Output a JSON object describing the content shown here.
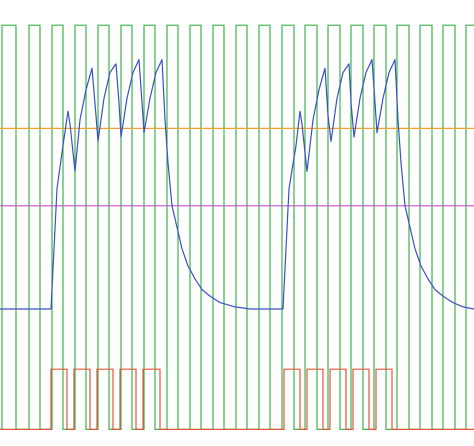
{
  "chart_data": {
    "type": "line",
    "title": "",
    "xlabel": "",
    "ylabel": "",
    "xlim": [
      0,
      474
    ],
    "ylim": [
      0,
      100
    ],
    "grid": false,
    "legend": "none",
    "clock": {
      "color": "#3cb44b",
      "high": 96,
      "low": 2,
      "rising_edges": [
        2,
        29,
        52,
        75,
        98,
        121,
        144,
        167,
        190,
        213,
        236,
        259,
        282,
        305,
        328,
        351,
        374,
        397,
        420,
        443,
        466
      ],
      "falling_edges": [
        16,
        40,
        63,
        86,
        109,
        132,
        155,
        178,
        201,
        224,
        247,
        270,
        294,
        317,
        340,
        363,
        386,
        409,
        432,
        455
      ]
    },
    "pulse_train": {
      "color": "#e6553a",
      "high": 16,
      "low": 2,
      "pulses": [
        [
          51,
          67
        ],
        [
          74,
          90
        ],
        [
          97,
          113
        ],
        [
          120,
          136
        ],
        [
          143,
          160
        ],
        [
          284,
          300
        ],
        [
          307,
          323
        ],
        [
          330,
          346
        ],
        [
          353,
          369
        ],
        [
          376,
          392
        ]
      ]
    },
    "upper_threshold": {
      "color": "#f0a030",
      "y": 72
    },
    "lower_threshold": {
      "color": "#c84fd6",
      "y": 54
    },
    "response": {
      "color": "#3a50c8",
      "points": [
        [
          0,
          30
        ],
        [
          20,
          30
        ],
        [
          51,
          30
        ],
        [
          57,
          58
        ],
        [
          63,
          68
        ],
        [
          68,
          76
        ],
        [
          70,
          73
        ],
        [
          75,
          62
        ],
        [
          80,
          74
        ],
        [
          86,
          81
        ],
        [
          92,
          86
        ],
        [
          96,
          75
        ],
        [
          98,
          69
        ],
        [
          104,
          79
        ],
        [
          110,
          85
        ],
        [
          116,
          87
        ],
        [
          119,
          78
        ],
        [
          121,
          70
        ],
        [
          127,
          79
        ],
        [
          133,
          85
        ],
        [
          139,
          88
        ],
        [
          142,
          78
        ],
        [
          144,
          71
        ],
        [
          150,
          79
        ],
        [
          156,
          85
        ],
        [
          162,
          88
        ],
        [
          165,
          74
        ],
        [
          168,
          64
        ],
        [
          172,
          54
        ],
        [
          177,
          49
        ],
        [
          182,
          44
        ],
        [
          188,
          40
        ],
        [
          195,
          37
        ],
        [
          202,
          34.5
        ],
        [
          210,
          33
        ],
        [
          220,
          31.5
        ],
        [
          235,
          30.5
        ],
        [
          250,
          30
        ],
        [
          283,
          30
        ],
        [
          289,
          58
        ],
        [
          296,
          68
        ],
        [
          300,
          76
        ],
        [
          302,
          73
        ],
        [
          307,
          62
        ],
        [
          313,
          74
        ],
        [
          319,
          81
        ],
        [
          325,
          86
        ],
        [
          328,
          75
        ],
        [
          331,
          69
        ],
        [
          337,
          79
        ],
        [
          343,
          85
        ],
        [
          349,
          87
        ],
        [
          351,
          78
        ],
        [
          354,
          70
        ],
        [
          360,
          79
        ],
        [
          366,
          85
        ],
        [
          372,
          88
        ],
        [
          375,
          78
        ],
        [
          377,
          71
        ],
        [
          383,
          79
        ],
        [
          389,
          85
        ],
        [
          395,
          88
        ],
        [
          398,
          74
        ],
        [
          401,
          64
        ],
        [
          405,
          54
        ],
        [
          410,
          49
        ],
        [
          415,
          44
        ],
        [
          421,
          40
        ],
        [
          428,
          37
        ],
        [
          435,
          34.5
        ],
        [
          443,
          33
        ],
        [
          453,
          31.5
        ],
        [
          463,
          30.5
        ],
        [
          474,
          30
        ]
      ]
    }
  }
}
